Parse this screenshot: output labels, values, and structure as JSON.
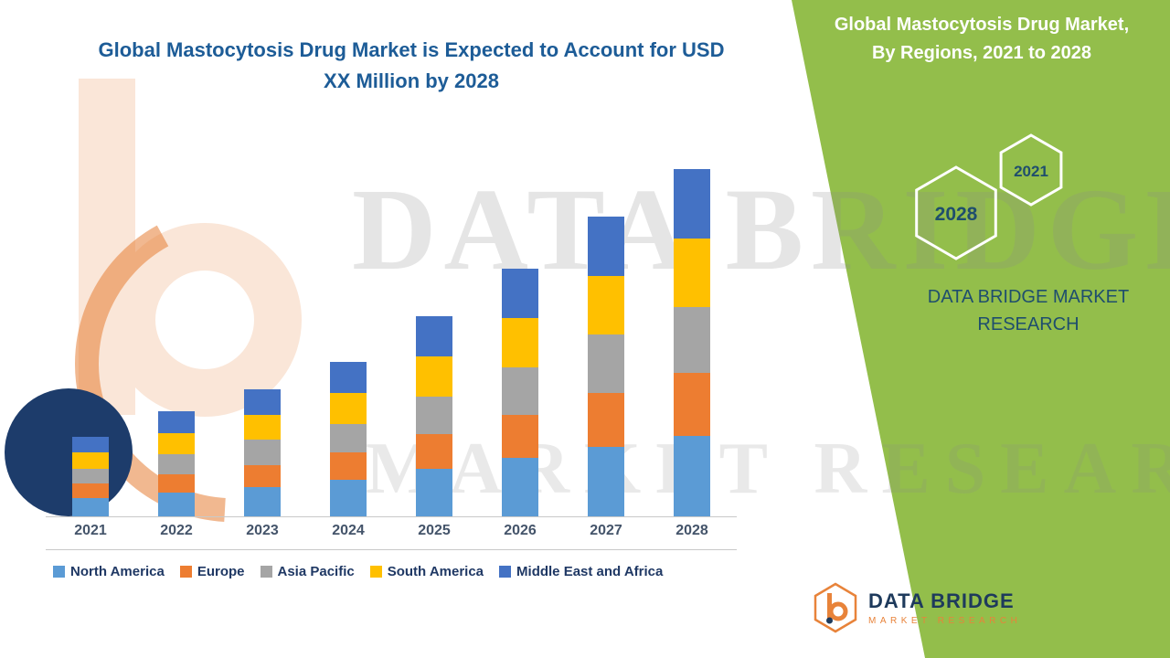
{
  "header": {
    "title": "Global Mastocytosis Drug Market is Expected to Account for USD XX Million by 2028"
  },
  "right_panel": {
    "background": "#93BE4B",
    "title_line1": "Global Mastocytosis Drug Market,",
    "title_line2": "By Regions, 2021 to 2028",
    "hexagons": [
      {
        "label": "2028"
      },
      {
        "label": "2021"
      }
    ],
    "brand_line1": "DATA BRIDGE MARKET",
    "brand_line2": "RESEARCH",
    "text_color": "#1F4E6D"
  },
  "watermark": {
    "line1": "DATA BRIDGE",
    "line2": "MARKET RESEARCH"
  },
  "footer_logo": {
    "brand": "DATA BRIDGE",
    "subtitle": "MARKET RESEARCH"
  },
  "chart_data": {
    "type": "bar",
    "stacked": true,
    "title": "Global Mastocytosis Drug Market is Expected to Account for USD XX Million by 2028",
    "xlabel": "",
    "ylabel": "",
    "ylim": [
      0,
      100
    ],
    "grid": false,
    "legend_position": "bottom",
    "categories": [
      "2021",
      "2022",
      "2023",
      "2024",
      "2025",
      "2026",
      "2027",
      "2028"
    ],
    "series": [
      {
        "name": "North America",
        "color": "#5B9BD5",
        "values": [
          5,
          6.5,
          8,
          10,
          13,
          16,
          19,
          22
        ]
      },
      {
        "name": "Europe",
        "color": "#ED7D31",
        "values": [
          4,
          5,
          6,
          7.5,
          9.5,
          12,
          15,
          17.5
        ]
      },
      {
        "name": "Asia Pacific",
        "color": "#A5A5A5",
        "values": [
          4,
          5.5,
          7,
          8,
          10.5,
          13,
          16,
          18
        ]
      },
      {
        "name": "South America",
        "color": "#FFC000",
        "values": [
          4.5,
          6,
          7,
          8.5,
          11,
          13.5,
          16,
          19
        ]
      },
      {
        "name": "Middle East and Africa",
        "color": "#4472C4",
        "values": [
          4.5,
          6,
          7,
          8.5,
          11,
          13.5,
          16.5,
          19
        ]
      }
    ]
  }
}
